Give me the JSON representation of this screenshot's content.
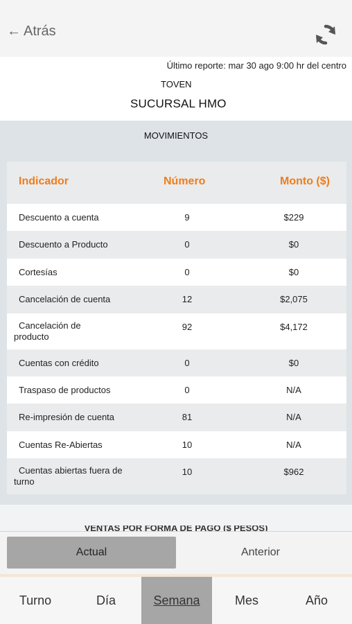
{
  "topbar": {
    "back_label": "Atrás",
    "back_icon": "arrow-left-icon",
    "refresh_icon": "refresh-icon"
  },
  "header": {
    "report": "Último reporte: mar 30 ago 9:00 hr del centro",
    "brand": "TOVEN",
    "branch": "SUCURSAL HMO"
  },
  "section": {
    "title": "MOVIMIENTOS"
  },
  "table": {
    "headers": [
      "Indicador",
      "Número",
      "Monto ($)"
    ],
    "rows": [
      {
        "indicador": "Descuento a cuenta",
        "numero": "9",
        "monto": "$229"
      },
      {
        "indicador": "Descuento a Producto",
        "numero": "0",
        "monto": "$0"
      },
      {
        "indicador": "Cortesías",
        "numero": "0",
        "monto": "$0"
      },
      {
        "indicador": "Cancelación de cuenta",
        "numero": "12",
        "monto": "$2,075"
      },
      {
        "indicador": "Cancelación de producto",
        "numero": "92",
        "monto": "$4,172"
      },
      {
        "indicador": "Cuentas con crédito",
        "numero": "0",
        "monto": "$0"
      },
      {
        "indicador": "Traspaso de productos",
        "numero": "0",
        "monto": "N/A"
      },
      {
        "indicador": "Re-impresión de cuenta",
        "numero": "81",
        "monto": "N/A"
      },
      {
        "indicador": "Cuentas Re-Abiertas",
        "numero": "10",
        "monto": "N/A"
      },
      {
        "indicador": "Cuentas abiertas fuera de turno",
        "numero": "10",
        "monto": "$962"
      }
    ]
  },
  "next_section": {
    "title": "VENTAS POR FORMA DE PAGO ($ PESOS)"
  },
  "period": {
    "actual": "Actual",
    "anterior": "Anterior",
    "selected": "Actual"
  },
  "tabs": [
    {
      "label": "Turno"
    },
    {
      "label": "Día"
    },
    {
      "label": "Semana"
    },
    {
      "label": "Mes"
    },
    {
      "label": "Año"
    }
  ],
  "selected_tab": "Semana",
  "colors": {
    "accent": "#ef7d1a",
    "selected": "#a6a6a6",
    "background": "#dde3e7"
  }
}
